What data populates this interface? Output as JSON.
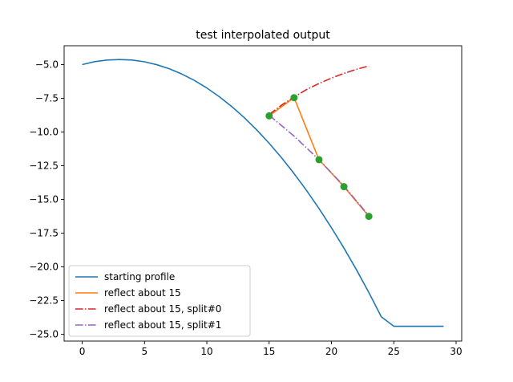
{
  "chart_data": {
    "type": "line",
    "title": "test interpolated output",
    "xlabel": "",
    "ylabel": "",
    "xlim": [
      -1.45,
      30.45
    ],
    "ylim": [
      -25.5,
      -3.6
    ],
    "xticks": [
      0,
      5,
      10,
      15,
      20,
      25,
      30
    ],
    "yticks": [
      -5.0,
      -7.5,
      -10.0,
      -12.5,
      -15.0,
      -17.5,
      -20.0,
      -22.5,
      -25.0
    ],
    "xtick_labels": [
      "0",
      "5",
      "10",
      "15",
      "20",
      "25",
      "30"
    ],
    "ytick_labels": [
      "−5.0",
      "−7.5",
      "−10.0",
      "−12.5",
      "−15.0",
      "−17.5",
      "−20.0",
      "−22.5",
      "−25.0"
    ],
    "grid": false,
    "legend_position": "lower-left",
    "series": [
      {
        "name": "starting profile",
        "color": "#1f77b4",
        "dash": "solid",
        "x": [
          0,
          1,
          2,
          3,
          4,
          5,
          6,
          7,
          8,
          9,
          10,
          11,
          12,
          13,
          14,
          15,
          16,
          17,
          18,
          19,
          20,
          21,
          22,
          23,
          24,
          25,
          26,
          27,
          28,
          29
        ],
        "y": [
          -5.0,
          -4.78,
          -4.66,
          -4.62,
          -4.66,
          -4.79,
          -5.01,
          -5.31,
          -5.7,
          -6.17,
          -6.73,
          -7.38,
          -8.11,
          -8.93,
          -9.84,
          -10.83,
          -11.91,
          -13.08,
          -14.33,
          -15.67,
          -17.1,
          -18.6,
          -20.2,
          -21.9,
          -23.7,
          -24.4,
          -24.4,
          -24.4,
          -24.4,
          -24.4
        ]
      },
      {
        "name": "reflect about 15",
        "color": "#ff7f0e",
        "dash": "solid",
        "x": [
          15,
          17,
          19,
          21,
          23
        ],
        "y": [
          -8.8,
          -7.45,
          -12.05,
          -14.05,
          -16.25
        ]
      },
      {
        "name": "reflect about 15, split#0",
        "color": "#d62728",
        "dash": "dashdot",
        "x": [
          15,
          16,
          17,
          18,
          19,
          20,
          21,
          22,
          23
        ],
        "y": [
          -8.7,
          -8.0,
          -7.4,
          -6.85,
          -6.4,
          -6.0,
          -5.65,
          -5.35,
          -5.1
        ]
      },
      {
        "name": "reflect about 15, split#1",
        "color": "#9467bd",
        "dash": "dashdot",
        "x": [
          15,
          17,
          19,
          21,
          23
        ],
        "y": [
          -8.75,
          -10.3,
          -12.05,
          -14.0,
          -16.2
        ]
      },
      {
        "name": "",
        "color": "#2ca02c",
        "marker": "circle",
        "x": [
          15,
          17,
          19,
          21,
          23
        ],
        "y": [
          -8.8,
          -7.45,
          -12.05,
          -14.05,
          -16.25
        ]
      }
    ]
  }
}
